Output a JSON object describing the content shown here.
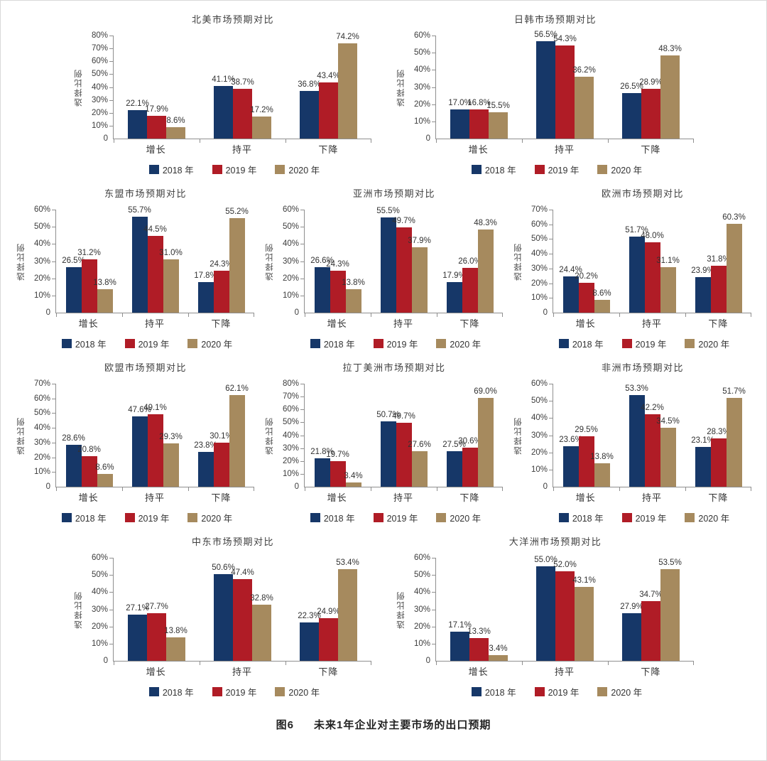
{
  "page": {
    "caption_label": "图6",
    "caption_text": "未来1年企业对主要市场的出口预期"
  },
  "axis": {
    "ylabel": "选择比例",
    "zero_label": "0",
    "tick_suffix": "%"
  },
  "series_colors": [
    "#163768",
    "#b01c26",
    "#a68a5e"
  ],
  "legend_labels": [
    "2018 年",
    "2019 年",
    "2020 年"
  ],
  "rows": [
    [
      0,
      1
    ],
    [
      2,
      3,
      4
    ],
    [
      5,
      6,
      7
    ],
    [
      8,
      9
    ]
  ],
  "chart_data": [
    {
      "type": "bar",
      "title": "北美市场预期对比",
      "ylabel": "选择比例",
      "categories": [
        "增长",
        "持平",
        "下降"
      ],
      "ylim": [
        0,
        80
      ],
      "ytick_step": 10,
      "legend_position": "bottom",
      "grid": false,
      "series": [
        {
          "name": "2018 年",
          "values": [
            22.1,
            41.1,
            36.8
          ]
        },
        {
          "name": "2019 年",
          "values": [
            17.9,
            38.7,
            43.4
          ]
        },
        {
          "name": "2020 年",
          "values": [
            8.6,
            17.2,
            74.2
          ]
        }
      ]
    },
    {
      "type": "bar",
      "title": "日韩市场预期对比",
      "ylabel": "选择比例",
      "categories": [
        "增长",
        "持平",
        "下降"
      ],
      "ylim": [
        0,
        60
      ],
      "ytick_step": 10,
      "legend_position": "bottom",
      "grid": false,
      "series": [
        {
          "name": "2018 年",
          "values": [
            17.0,
            56.5,
            26.5
          ]
        },
        {
          "name": "2019 年",
          "values": [
            16.8,
            54.3,
            28.9
          ]
        },
        {
          "name": "2020 年",
          "values": [
            15.5,
            36.2,
            48.3
          ]
        }
      ]
    },
    {
      "type": "bar",
      "title": "东盟市场预期对比",
      "ylabel": "选择比例",
      "categories": [
        "增长",
        "持平",
        "下降"
      ],
      "ylim": [
        0,
        60
      ],
      "ytick_step": 10,
      "legend_position": "bottom",
      "grid": false,
      "series": [
        {
          "name": "2018 年",
          "values": [
            26.5,
            55.7,
            17.8
          ]
        },
        {
          "name": "2019 年",
          "values": [
            31.2,
            44.5,
            24.3
          ]
        },
        {
          "name": "2020 年",
          "values": [
            13.8,
            31.0,
            55.2
          ]
        }
      ]
    },
    {
      "type": "bar",
      "title": "亚洲市场预期对比",
      "ylabel": "选择比例",
      "categories": [
        "增长",
        "持平",
        "下降"
      ],
      "ylim": [
        0,
        60
      ],
      "ytick_step": 10,
      "legend_position": "bottom",
      "grid": false,
      "series": [
        {
          "name": "2018 年",
          "values": [
            26.6,
            55.5,
            17.9
          ]
        },
        {
          "name": "2019 年",
          "values": [
            24.3,
            49.7,
            26.0
          ]
        },
        {
          "name": "2020 年",
          "values": [
            13.8,
            37.9,
            48.3
          ]
        }
      ]
    },
    {
      "type": "bar",
      "title": "欧洲市场预期对比",
      "ylabel": "选择比例",
      "categories": [
        "增长",
        "持平",
        "下降"
      ],
      "ylim": [
        0,
        70
      ],
      "ytick_step": 10,
      "legend_position": "bottom",
      "grid": false,
      "series": [
        {
          "name": "2018 年",
          "values": [
            24.4,
            51.7,
            23.9
          ]
        },
        {
          "name": "2019 年",
          "values": [
            20.2,
            48.0,
            31.8
          ]
        },
        {
          "name": "2020 年",
          "values": [
            8.6,
            31.1,
            60.3
          ]
        }
      ]
    },
    {
      "type": "bar",
      "title": "欧盟市场预期对比",
      "ylabel": "选择比例",
      "categories": [
        "增长",
        "持平",
        "下降"
      ],
      "ylim": [
        0,
        70
      ],
      "ytick_step": 10,
      "legend_position": "bottom",
      "grid": false,
      "series": [
        {
          "name": "2018 年",
          "values": [
            28.6,
            47.6,
            23.8
          ]
        },
        {
          "name": "2019 年",
          "values": [
            20.8,
            49.1,
            30.1
          ]
        },
        {
          "name": "2020 年",
          "values": [
            8.6,
            29.3,
            62.1
          ]
        }
      ]
    },
    {
      "type": "bar",
      "title": "拉丁美洲市场预期对比",
      "ylabel": "选择比例",
      "categories": [
        "增长",
        "持平",
        "下降"
      ],
      "ylim": [
        0,
        80
      ],
      "ytick_step": 10,
      "legend_position": "bottom",
      "grid": false,
      "series": [
        {
          "name": "2018 年",
          "values": [
            21.8,
            50.7,
            27.5
          ]
        },
        {
          "name": "2019 年",
          "values": [
            19.7,
            49.7,
            30.6
          ]
        },
        {
          "name": "2020 年",
          "values": [
            3.4,
            27.6,
            69.0
          ]
        }
      ]
    },
    {
      "type": "bar",
      "title": "非洲市场预期对比",
      "ylabel": "选择比例",
      "categories": [
        "增长",
        "持平",
        "下降"
      ],
      "ylim": [
        0,
        60
      ],
      "ytick_step": 10,
      "legend_position": "bottom",
      "grid": false,
      "series": [
        {
          "name": "2018 年",
          "values": [
            23.6,
            53.3,
            23.1
          ]
        },
        {
          "name": "2019 年",
          "values": [
            29.5,
            42.2,
            28.3
          ]
        },
        {
          "name": "2020 年",
          "values": [
            13.8,
            34.5,
            51.7
          ]
        }
      ]
    },
    {
      "type": "bar",
      "title": "中东市场预期对比",
      "ylabel": "选择比例",
      "categories": [
        "增长",
        "持平",
        "下降"
      ],
      "ylim": [
        0,
        60
      ],
      "ytick_step": 10,
      "legend_position": "bottom",
      "grid": false,
      "series": [
        {
          "name": "2018 年",
          "values": [
            27.1,
            50.6,
            22.3
          ]
        },
        {
          "name": "2019 年",
          "values": [
            27.7,
            47.4,
            24.9
          ]
        },
        {
          "name": "2020 年",
          "values": [
            13.8,
            32.8,
            53.4
          ]
        }
      ]
    },
    {
      "type": "bar",
      "title": "大洋洲市场预期对比",
      "ylabel": "选择比例",
      "categories": [
        "增长",
        "持平",
        "下降"
      ],
      "ylim": [
        0,
        60
      ],
      "ytick_step": 10,
      "legend_position": "bottom",
      "grid": false,
      "series": [
        {
          "name": "2018 年",
          "values": [
            17.1,
            55.0,
            27.9
          ]
        },
        {
          "name": "2019 年",
          "values": [
            13.3,
            52.0,
            34.7
          ]
        },
        {
          "name": "2020 年",
          "values": [
            3.4,
            43.1,
            53.5
          ]
        }
      ]
    }
  ]
}
